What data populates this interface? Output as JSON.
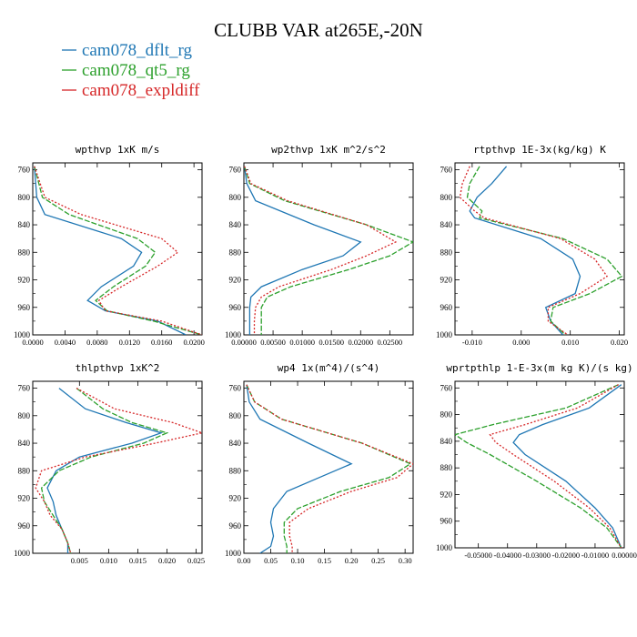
{
  "title": "CLUBB VAR at265E,-20N",
  "legend": [
    {
      "label": "cam078_dflt_rg",
      "color": "#1f77b4",
      "dash": ""
    },
    {
      "label": "cam078_qt5_rg",
      "color": "#2ca02c",
      "dash": "6,2"
    },
    {
      "label": "cam078_expldiff",
      "color": "#d62728",
      "dash": "2,2"
    }
  ],
  "chart_data": [
    {
      "type": "line",
      "title": "wpthvp  1xK m/s",
      "ylim": [
        1000,
        750
      ],
      "yticks": [
        760,
        800,
        840,
        880,
        920,
        960,
        1000
      ],
      "xlim": [
        0.0,
        0.021
      ],
      "xticks": [
        0.0,
        0.004,
        0.008,
        0.012,
        0.016,
        0.02
      ],
      "xticklabels": [
        "0.0000",
        "0.0040",
        "0.0080",
        "0.0120",
        "0.0160",
        "0.0200"
      ],
      "pressure": [
        755,
        800,
        825,
        860,
        880,
        900,
        930,
        950,
        965,
        980,
        1000
      ],
      "series": [
        {
          "name": "cam078_dflt_rg",
          "values": [
            0.0002,
            0.0005,
            0.0015,
            0.011,
            0.0135,
            0.0125,
            0.0085,
            0.0068,
            0.009,
            0.0155,
            0.019
          ]
        },
        {
          "name": "cam078_qt5_rg",
          "values": [
            0.0002,
            0.0012,
            0.0045,
            0.013,
            0.0152,
            0.014,
            0.01,
            0.0078,
            0.0092,
            0.015,
            0.021
          ]
        },
        {
          "name": "cam078_expldiff",
          "values": [
            0.0002,
            0.0015,
            0.006,
            0.016,
            0.018,
            0.0155,
            0.011,
            0.0082,
            0.009,
            0.016,
            0.021
          ]
        }
      ]
    },
    {
      "type": "line",
      "title": "wp2thvp  1xK m^2/s^2",
      "ylim": [
        1000,
        750
      ],
      "yticks": [
        760,
        800,
        840,
        880,
        920,
        960,
        1000
      ],
      "xlim": [
        0.0,
        0.029
      ],
      "xticks": [
        0.0,
        0.005,
        0.01,
        0.015,
        0.02,
        0.025
      ],
      "xticklabels": [
        "0.00000",
        "0.00500",
        "0.01000",
        "0.01500",
        "0.02000",
        "0.02500"
      ],
      "pressure": [
        755,
        780,
        805,
        840,
        865,
        885,
        905,
        930,
        945,
        960,
        980,
        1000
      ],
      "series": [
        {
          "name": "cam078_dflt_rg",
          "values": [
            0.0001,
            0.0005,
            0.002,
            0.012,
            0.02,
            0.017,
            0.01,
            0.003,
            0.0012,
            0.001,
            0.001,
            0.001
          ]
        },
        {
          "name": "cam078_qt5_rg",
          "values": [
            0.0001,
            0.001,
            0.007,
            0.021,
            0.029,
            0.025,
            0.018,
            0.008,
            0.004,
            0.003,
            0.003,
            0.003
          ]
        },
        {
          "name": "cam078_expldiff",
          "values": [
            0.0001,
            0.0012,
            0.0075,
            0.021,
            0.026,
            0.021,
            0.015,
            0.006,
            0.003,
            0.002,
            0.0018,
            0.0018
          ]
        }
      ]
    },
    {
      "type": "line",
      "title": "rtpthvp  1E-3x(kg/kg) K",
      "ylim": [
        1000,
        750
      ],
      "yticks": [
        760,
        800,
        840,
        880,
        920,
        960,
        1000
      ],
      "xlim": [
        -0.0135,
        0.021
      ],
      "xticks": [
        -0.01,
        0.0,
        0.01,
        0.02
      ],
      "xticklabels": [
        "-0.010",
        "0.000",
        "0.010",
        "0.020"
      ],
      "pressure": [
        755,
        780,
        800,
        820,
        830,
        860,
        890,
        915,
        940,
        960,
        980,
        1000
      ],
      "series": [
        {
          "name": "cam078_dflt_rg",
          "values": [
            -0.003,
            -0.006,
            -0.009,
            -0.0105,
            -0.0095,
            0.004,
            0.0105,
            0.012,
            0.011,
            0.005,
            0.006,
            0.0085
          ]
        },
        {
          "name": "cam078_qt5_rg",
          "values": [
            -0.0085,
            -0.0105,
            -0.011,
            -0.008,
            -0.0085,
            0.0085,
            0.0175,
            0.0205,
            0.014,
            0.0065,
            0.006,
            0.009
          ]
        },
        {
          "name": "cam078_expldiff",
          "values": [
            -0.0105,
            -0.012,
            -0.0125,
            -0.0095,
            -0.0075,
            0.008,
            0.015,
            0.0175,
            0.012,
            0.0055,
            0.0055,
            0.0095
          ]
        }
      ]
    },
    {
      "type": "line",
      "title": "thlpthvp  1xK^2",
      "ylim": [
        1000,
        750
      ],
      "yticks": [
        760,
        800,
        840,
        880,
        920,
        960,
        1000
      ],
      "xlim": [
        -0.003,
        0.026
      ],
      "xticks": [
        0.005,
        0.01,
        0.015,
        0.02,
        0.025
      ],
      "xticklabels": [
        "0.005",
        "0.010",
        "0.015",
        "0.020",
        "0.025"
      ],
      "pressure": [
        760,
        790,
        810,
        825,
        840,
        860,
        880,
        905,
        925,
        945,
        965,
        985,
        1000
      ],
      "series": [
        {
          "name": "cam078_dflt_rg",
          "values": [
            0.0015,
            0.006,
            0.013,
            0.019,
            0.014,
            0.005,
            0.001,
            -0.0005,
            0.0005,
            0.001,
            0.002,
            0.003,
            0.003
          ]
        },
        {
          "name": "cam078_qt5_rg",
          "values": [
            0.0045,
            0.009,
            0.014,
            0.02,
            0.016,
            0.007,
            0.0015,
            -0.0015,
            -0.001,
            0.0005,
            0.002,
            0.003,
            0.0035
          ]
        },
        {
          "name": "cam078_expldiff",
          "values": [
            0.0045,
            0.011,
            0.021,
            0.026,
            0.018,
            0.006,
            -0.0015,
            -0.0025,
            -0.001,
            0.0,
            0.002,
            0.003,
            0.0035
          ]
        }
      ]
    },
    {
      "type": "line",
      "title": "wp4  1x(m^4)/(s^4)",
      "ylim": [
        1000,
        750
      ],
      "yticks": [
        760,
        800,
        840,
        880,
        920,
        960,
        1000
      ],
      "xlim": [
        0.0,
        0.315
      ],
      "xticks": [
        0.0,
        0.05,
        0.1,
        0.15,
        0.2,
        0.25,
        0.3
      ],
      "xticklabels": [
        "0.00",
        "0.05",
        "0.10",
        "0.15",
        "0.20",
        "0.25",
        "0.30"
      ],
      "pressure": [
        755,
        780,
        805,
        840,
        870,
        890,
        910,
        935,
        955,
        975,
        990,
        1000
      ],
      "series": [
        {
          "name": "cam078_dflt_rg",
          "values": [
            0.005,
            0.01,
            0.03,
            0.12,
            0.2,
            0.14,
            0.08,
            0.055,
            0.05,
            0.055,
            0.05,
            0.03
          ]
        },
        {
          "name": "cam078_qt5_rg",
          "values": [
            0.005,
            0.02,
            0.07,
            0.22,
            0.31,
            0.27,
            0.18,
            0.1,
            0.075,
            0.075,
            0.08,
            0.08
          ]
        },
        {
          "name": "cam078_expldiff",
          "values": [
            0.005,
            0.02,
            0.07,
            0.22,
            0.315,
            0.285,
            0.2,
            0.12,
            0.085,
            0.085,
            0.09,
            0.09
          ]
        }
      ]
    },
    {
      "type": "line",
      "title": "wprtpthlp  1-E-3x(m kg K)/(s kg)",
      "ylim": [
        1000,
        750
      ],
      "yticks": [
        760,
        800,
        840,
        880,
        920,
        960,
        1000
      ],
      "xlim": [
        -0.058,
        0.0
      ],
      "xticks": [
        -0.05,
        -0.04,
        -0.03,
        -0.02,
        -0.01,
        0.0
      ],
      "xticklabels": [
        "-0.05000",
        "-0.04000",
        "-0.03000",
        "-0.02000",
        "-0.01000",
        "0.00000"
      ],
      "pressure": [
        755,
        790,
        815,
        830,
        842,
        860,
        900,
        940,
        970,
        1000
      ],
      "series": [
        {
          "name": "cam078_dflt_rg",
          "values": [
            -0.001,
            -0.012,
            -0.028,
            -0.036,
            -0.038,
            -0.034,
            -0.02,
            -0.01,
            -0.004,
            -0.001
          ]
        },
        {
          "name": "cam078_qt5_rg",
          "values": [
            -0.002,
            -0.02,
            -0.045,
            -0.058,
            -0.054,
            -0.046,
            -0.03,
            -0.015,
            -0.006,
            -0.001
          ]
        },
        {
          "name": "cam078_expldiff",
          "values": [
            -0.002,
            -0.016,
            -0.034,
            -0.046,
            -0.044,
            -0.038,
            -0.024,
            -0.012,
            -0.005,
            -0.001
          ]
        }
      ]
    }
  ]
}
